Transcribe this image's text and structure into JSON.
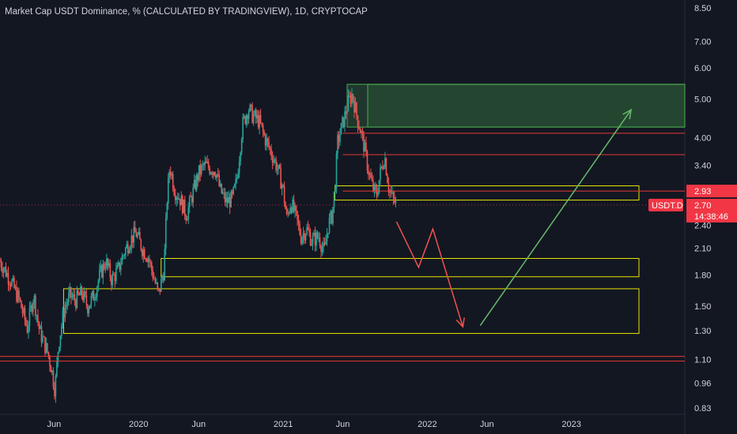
{
  "title": "Market Cap USDT Dominance, % (CALCULATED BY TRADINGVIEW), 1D, CRYPTOCAP",
  "colors": {
    "background": "#131722",
    "up": "#26a69a",
    "down": "#ef5350",
    "text": "#d1d4dc",
    "yellow_zone": "#e6e600",
    "green_zone": "#4caf50",
    "red_line": "#e53935",
    "tag_red": "#f23645"
  },
  "chart_data": {
    "type": "candlestick",
    "symbol": "USDT.D",
    "interval": "1D",
    "y_scale": "log",
    "ylim": [
      0.8,
      8.9
    ],
    "y_ticks": [
      8.5,
      7.0,
      6.0,
      5.0,
      4.0,
      3.4,
      2.93,
      2.7,
      2.4,
      2.1,
      1.8,
      1.5,
      1.3,
      1.1,
      0.96,
      0.83
    ],
    "x_ticks": [
      "Jun",
      "2020",
      "Jun",
      "2021",
      "Jun",
      "2022",
      "Jun",
      "2023"
    ],
    "x_range": [
      "2019-01-15",
      "2023-10-15"
    ],
    "price_series": [
      [
        "2019-01-15",
        1.95
      ],
      [
        "2019-02-10",
        1.75
      ],
      [
        "2019-03-05",
        1.55
      ],
      [
        "2019-03-25",
        1.32
      ],
      [
        "2019-04-10",
        1.6
      ],
      [
        "2019-04-25",
        1.3
      ],
      [
        "2019-05-15",
        1.15
      ],
      [
        "2019-05-25",
        1.05
      ],
      [
        "2019-06-03",
        0.92
      ],
      [
        "2019-06-12",
        1.2
      ],
      [
        "2019-06-25",
        1.45
      ],
      [
        "2019-07-10",
        1.6
      ],
      [
        "2019-07-25",
        1.55
      ],
      [
        "2019-08-10",
        1.62
      ],
      [
        "2019-08-25",
        1.5
      ],
      [
        "2019-09-10",
        1.6
      ],
      [
        "2019-09-25",
        1.8
      ],
      [
        "2019-10-10",
        1.95
      ],
      [
        "2019-10-25",
        1.75
      ],
      [
        "2019-11-10",
        1.85
      ],
      [
        "2019-11-25",
        2.05
      ],
      [
        "2019-12-10",
        2.2
      ],
      [
        "2019-12-25",
        2.3
      ],
      [
        "2020-01-10",
        2.1
      ],
      [
        "2020-01-25",
        2.0
      ],
      [
        "2020-02-10",
        1.75
      ],
      [
        "2020-02-20",
        1.6
      ],
      [
        "2020-03-05",
        1.85
      ],
      [
        "2020-03-13",
        2.8
      ],
      [
        "2020-03-20",
        3.4
      ],
      [
        "2020-04-01",
        2.95
      ],
      [
        "2020-04-15",
        2.8
      ],
      [
        "2020-05-01",
        2.55
      ],
      [
        "2020-05-15",
        2.85
      ],
      [
        "2020-06-01",
        3.25
      ],
      [
        "2020-06-15",
        3.4
      ],
      [
        "2020-07-01",
        3.35
      ],
      [
        "2020-07-15",
        3.3
      ],
      [
        "2020-07-25",
        2.95
      ],
      [
        "2020-08-10",
        2.75
      ],
      [
        "2020-08-25",
        2.8
      ],
      [
        "2020-09-05",
        3.1
      ],
      [
        "2020-09-20",
        4.3
      ],
      [
        "2020-10-05",
        4.75
      ],
      [
        "2020-10-15",
        4.55
      ],
      [
        "2020-11-01",
        4.4
      ],
      [
        "2020-11-15",
        4.0
      ],
      [
        "2020-11-30",
        3.7
      ],
      [
        "2020-12-15",
        3.4
      ],
      [
        "2020-12-31",
        3.0
      ],
      [
        "2021-01-10",
        2.5
      ],
      [
        "2021-01-20",
        2.75
      ],
      [
        "2021-02-01",
        2.55
      ],
      [
        "2021-02-15",
        2.25
      ],
      [
        "2021-03-01",
        2.35
      ],
      [
        "2021-03-15",
        2.2
      ],
      [
        "2021-04-01",
        2.25
      ],
      [
        "2021-04-15",
        2.05
      ],
      [
        "2021-04-25",
        2.4
      ],
      [
        "2021-05-05",
        2.55
      ],
      [
        "2021-05-12",
        3.0
      ],
      [
        "2021-05-19",
        3.9
      ],
      [
        "2021-05-25",
        4.1
      ],
      [
        "2021-06-05",
        4.5
      ],
      [
        "2021-06-15",
        4.9
      ],
      [
        "2021-06-25",
        5.15
      ],
      [
        "2021-07-05",
        4.6
      ],
      [
        "2021-07-15",
        4.2
      ],
      [
        "2021-07-25",
        3.8
      ],
      [
        "2021-08-05",
        3.3
      ],
      [
        "2021-08-15",
        3.0
      ],
      [
        "2021-08-25",
        2.85
      ],
      [
        "2021-09-05",
        3.3
      ],
      [
        "2021-09-15",
        3.6
      ],
      [
        "2021-09-25",
        3.0
      ],
      [
        "2021-10-05",
        2.8
      ],
      [
        "2021-10-15",
        2.7
      ]
    ],
    "current_price": "2.70",
    "current_price_date": "2021-10-15",
    "countdown": "14:38:46",
    "level_label": "2.93",
    "level_value": 2.93,
    "horizontal_lines": [
      {
        "value": 4.1,
        "color": "#e53935"
      },
      {
        "value": 3.62,
        "color": "#e53935"
      },
      {
        "value": 2.93,
        "color": "#e53935"
      },
      {
        "value": 1.12,
        "color": "#e53935"
      },
      {
        "value": 1.09,
        "color": "#e53935"
      }
    ],
    "zones": [
      {
        "kind": "green",
        "from": "2021-06-12",
        "to": "2023-10-10",
        "y_low": 4.25,
        "y_high": 5.45
      },
      {
        "kind": "yellow",
        "from": "2021-05-12",
        "to": "2023-10-10",
        "y_low": 2.78,
        "y_high": 3.02
      },
      {
        "kind": "yellow",
        "from": "2020-02-27",
        "to": "2023-10-10",
        "y_low": 1.78,
        "y_high": 1.98
      },
      {
        "kind": "yellow",
        "from": "2019-06-25",
        "to": "2023-10-10",
        "y_low": 1.28,
        "y_high": 1.66
      }
    ],
    "projection_red": [
      [
        "2021-10-15",
        2.45
      ],
      [
        "2021-12-10",
        1.88
      ],
      [
        "2022-01-15",
        2.35
      ],
      [
        "2022-04-01",
        1.33
      ]
    ],
    "projection_green": [
      [
        "2022-05-15",
        1.34
      ],
      [
        "2023-06-01",
        4.7
      ]
    ]
  }
}
